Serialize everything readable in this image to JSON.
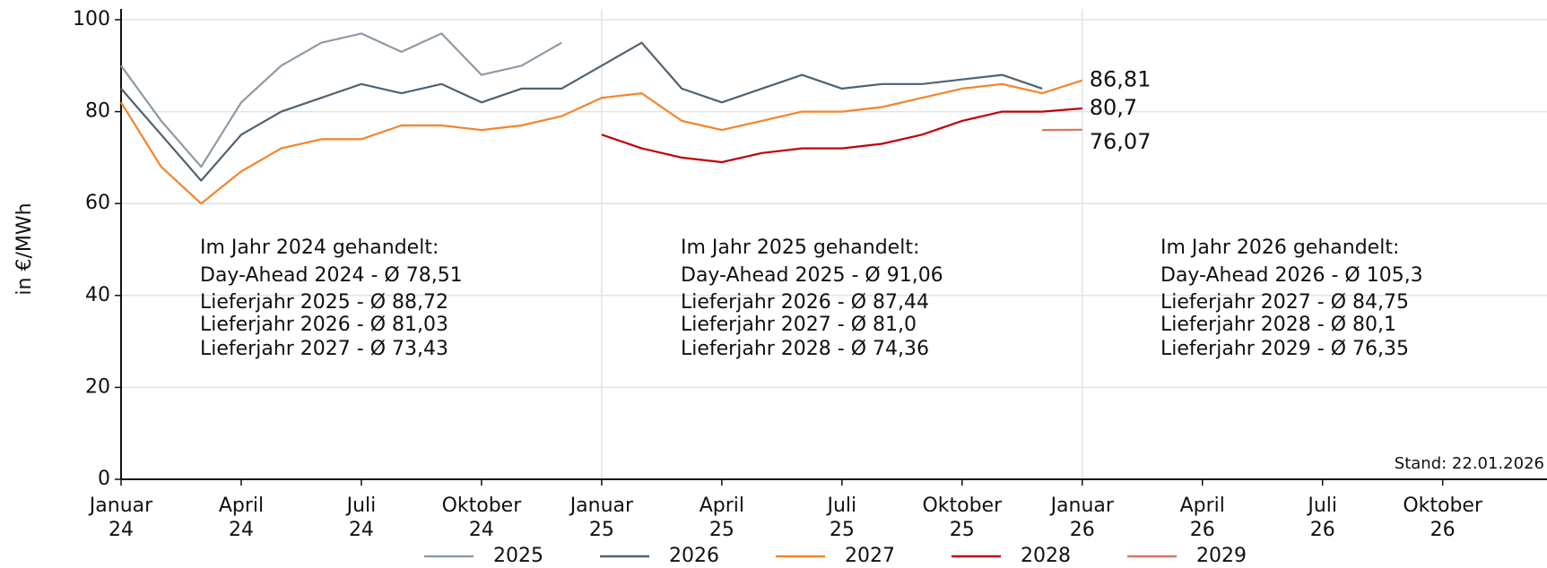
{
  "chart_data": {
    "type": "line",
    "y_label": "in €/MWh",
    "x": [
      "2024-01",
      "2024-02",
      "2024-03",
      "2024-04",
      "2024-05",
      "2024-06",
      "2024-07",
      "2024-08",
      "2024-09",
      "2024-10",
      "2024-11",
      "2024-12",
      "2025-01",
      "2025-02",
      "2025-03",
      "2025-04",
      "2025-05",
      "2025-06",
      "2025-07",
      "2025-08",
      "2025-09",
      "2025-10",
      "2025-11",
      "2025-12",
      "2026-01"
    ],
    "series": [
      {
        "name": "2025",
        "color": "#8e9aa6",
        "values": [
          90,
          78,
          68,
          82,
          90,
          95,
          97,
          93,
          97,
          88,
          90,
          95,
          null,
          null,
          null,
          null,
          null,
          null,
          null,
          null,
          null,
          null,
          null,
          null,
          null
        ]
      },
      {
        "name": "2026",
        "color": "#4f6272",
        "values": [
          85,
          75,
          65,
          75,
          80,
          83,
          86,
          84,
          86,
          82,
          85,
          85,
          90,
          95,
          85,
          82,
          85,
          88,
          85,
          86,
          86,
          87,
          88,
          85,
          null
        ]
      },
      {
        "name": "2027",
        "color": "#f5842a",
        "values": [
          82,
          68,
          60,
          67,
          72,
          74,
          74,
          77,
          77,
          76,
          77,
          79,
          83,
          84,
          78,
          76,
          78,
          80,
          80,
          81,
          83,
          85,
          86,
          84,
          86.81
        ],
        "value_labels": [
          null,
          null,
          null,
          null,
          null,
          null,
          null,
          null,
          null,
          null,
          null,
          null,
          null,
          null,
          null,
          null,
          null,
          null,
          null,
          null,
          null,
          null,
          null,
          null,
          "86,81"
        ]
      },
      {
        "name": "2028",
        "color": "#c0000b",
        "values": [
          null,
          null,
          null,
          null,
          null,
          null,
          null,
          null,
          null,
          null,
          null,
          null,
          75,
          72,
          70,
          69,
          71,
          72,
          72,
          73,
          75,
          78,
          80,
          80,
          80.7
        ],
        "value_labels": [
          null,
          null,
          null,
          null,
          null,
          null,
          null,
          null,
          null,
          null,
          null,
          null,
          null,
          null,
          null,
          null,
          null,
          null,
          null,
          null,
          null,
          null,
          null,
          null,
          "80,7"
        ]
      },
      {
        "name": "2029",
        "color": "#d9765a",
        "values": [
          null,
          null,
          null,
          null,
          null,
          null,
          null,
          null,
          null,
          null,
          null,
          null,
          null,
          null,
          null,
          null,
          null,
          null,
          null,
          null,
          null,
          null,
          null,
          76,
          76.07
        ],
        "value_labels": [
          null,
          null,
          null,
          null,
          null,
          null,
          null,
          null,
          null,
          null,
          null,
          null,
          null,
          null,
          null,
          null,
          null,
          null,
          null,
          null,
          null,
          null,
          null,
          null,
          "76,07"
        ]
      }
    ],
    "xlim": [
      "2024-01",
      "2026-12"
    ],
    "xticks": [
      {
        "value": "2024-01",
        "label": [
          "Januar",
          "24"
        ]
      },
      {
        "value": "2024-04",
        "label": [
          "April",
          "24"
        ]
      },
      {
        "value": "2024-07",
        "label": [
          "Juli",
          "24"
        ]
      },
      {
        "value": "2024-10",
        "label": [
          "Oktober",
          "24"
        ]
      },
      {
        "value": "2025-01",
        "label": [
          "Januar",
          "25"
        ]
      },
      {
        "value": "2025-04",
        "label": [
          "April",
          "25"
        ]
      },
      {
        "value": "2025-07",
        "label": [
          "Juli",
          "25"
        ]
      },
      {
        "value": "2025-10",
        "label": [
          "Oktober",
          "25"
        ]
      },
      {
        "value": "2026-01",
        "label": [
          "Januar",
          "26"
        ]
      },
      {
        "value": "2026-04",
        "label": [
          "April",
          "26"
        ]
      },
      {
        "value": "2026-07",
        "label": [
          "Juli",
          "26"
        ]
      },
      {
        "value": "2026-10",
        "label": [
          "Oktober",
          "26"
        ]
      }
    ],
    "vgrid": [
      "2025-01",
      "2026-01"
    ],
    "ylim": [
      0,
      100
    ],
    "yticks": [
      0,
      20,
      40,
      60,
      80,
      100
    ],
    "grid": true,
    "legend": "bottom",
    "annotations": [
      {
        "title": "Im Jahr 2024 gehandelt:",
        "lines": [
          {
            "text": "Day-Ahead 2024 - Ø 78,51",
            "color": "#7ec8e0"
          },
          {
            "text": "Lieferjahr 2025 - Ø 88,72",
            "color": "#8e9aa6"
          },
          {
            "text": "Lieferjahr 2026 - Ø 81,03",
            "color": "#4f6272"
          },
          {
            "text": "Lieferjahr 2027 - Ø 73,43",
            "color": "#f5842a"
          }
        ]
      },
      {
        "title": "Im Jahr 2025 gehandelt:",
        "lines": [
          {
            "text": "Day-Ahead 2025 - Ø 91,06",
            "color": "#8e9aa6"
          },
          {
            "text": "Lieferjahr 2026 - Ø 87,44",
            "color": "#4f6272"
          },
          {
            "text": "Lieferjahr 2027 - Ø 81,0",
            "color": "#f5842a"
          },
          {
            "text": "Lieferjahr 2028 - Ø 74,36",
            "color": "#c0000b"
          }
        ]
      },
      {
        "title": "Im Jahr 2026 gehandelt:",
        "lines": [
          {
            "text": "Day-Ahead 2026 - Ø 105,3",
            "color": "#4f6272"
          },
          {
            "text": "Lieferjahr 2027 - Ø 84,75",
            "color": "#f5842a"
          },
          {
            "text": "Lieferjahr 2028 - Ø 80,1",
            "color": "#c0000b"
          },
          {
            "text": "Lieferjahr 2029 - Ø 76,35",
            "color": "#d9765a"
          }
        ]
      }
    ],
    "note": "Stand: 22.01.2026"
  }
}
